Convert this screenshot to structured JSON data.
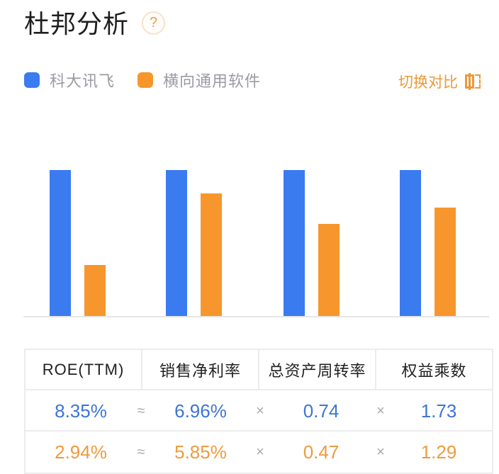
{
  "header": {
    "title": "杜邦分析",
    "help_icon": "question-circle-icon"
  },
  "legend": {
    "items": [
      {
        "label": "科大讯飞",
        "color": "#3a7bf0"
      },
      {
        "label": "横向通用软件",
        "color": "#f7962c"
      }
    ]
  },
  "switch_button": {
    "label": "切换对比",
    "icon": "switch-compare-icon"
  },
  "colors": {
    "primary": "#3a7bf0",
    "secondary": "#f7962c",
    "value_primary": "#3d74d8",
    "value_secondary": "#ee9b3c",
    "operator": "#aaaaaa"
  },
  "table": {
    "headers": [
      "ROE(TTM)",
      "销售净利率",
      "总资产周转率",
      "权益乘数"
    ],
    "operators": [
      "≈",
      "×",
      "×"
    ],
    "rows": [
      {
        "name": "科大讯飞",
        "values": [
          "8.35%",
          "6.96%",
          "0.74",
          "1.73"
        ]
      },
      {
        "name": "横向通用软件",
        "values": [
          "2.94%",
          "5.85%",
          "0.47",
          "1.29"
        ]
      }
    ]
  },
  "chart_data": {
    "type": "bar",
    "title": "杜邦分析",
    "categories": [
      "ROE(TTM)",
      "销售净利率",
      "总资产周转率",
      "权益乘数"
    ],
    "series": [
      {
        "name": "科大讯飞",
        "color": "#3a7bf0",
        "values": [
          8.35,
          6.96,
          0.74,
          1.73
        ]
      },
      {
        "name": "横向通用软件",
        "color": "#f7962c",
        "values": [
          2.94,
          5.85,
          0.47,
          1.29
        ]
      }
    ],
    "normalization": "per-category, max value = full height",
    "xlabel": "",
    "ylabel": "",
    "grid": false,
    "legend_position": "top-left"
  }
}
